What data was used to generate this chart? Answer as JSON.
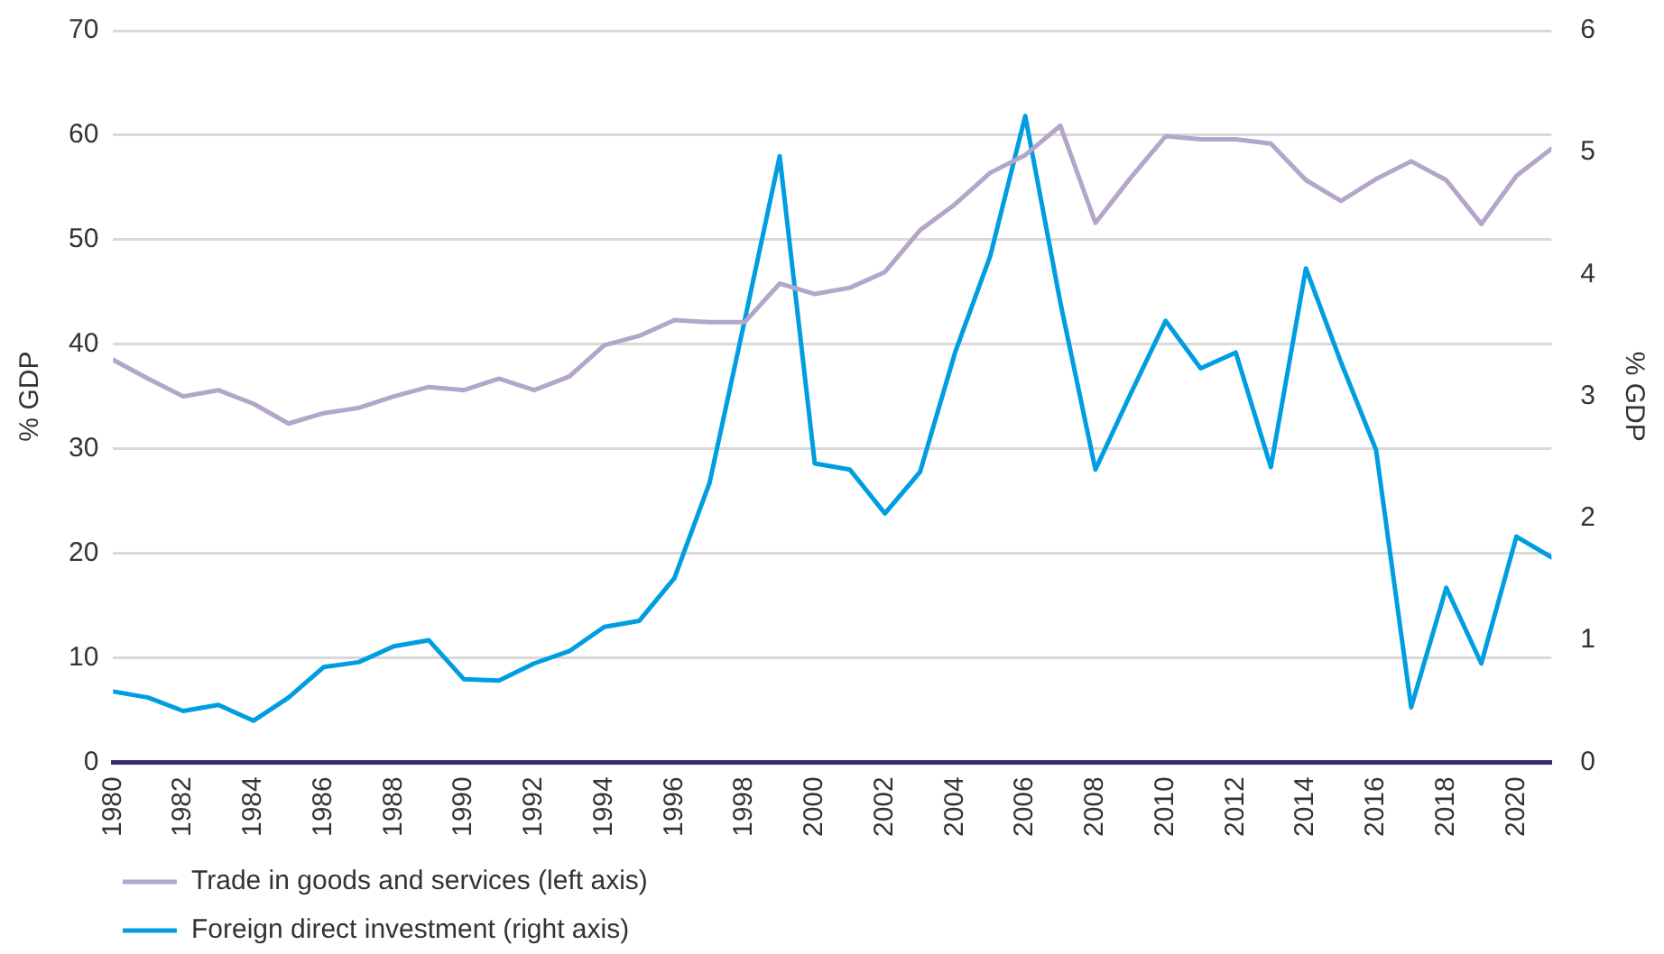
{
  "chart_data": {
    "type": "line",
    "x": [
      1980,
      1981,
      1982,
      1983,
      1984,
      1985,
      1986,
      1987,
      1988,
      1989,
      1990,
      1991,
      1992,
      1993,
      1994,
      1995,
      1996,
      1997,
      1998,
      1999,
      2000,
      2001,
      2002,
      2003,
      2004,
      2005,
      2006,
      2007,
      2008,
      2009,
      2010,
      2011,
      2012,
      2013,
      2014,
      2015,
      2016,
      2017,
      2018,
      2019,
      2020,
      2021
    ],
    "series": [
      {
        "name": "Trade in goods and services (left axis)",
        "color": "#b3a6c9",
        "values": [
          38.5,
          36.7,
          35.0,
          35.6,
          34.3,
          32.4,
          33.4,
          33.9,
          35.0,
          35.9,
          35.6,
          36.7,
          35.6,
          36.9,
          39.9,
          40.8,
          42.3,
          42.1,
          42.1,
          45.8,
          44.8,
          45.4,
          46.9,
          50.9,
          53.4,
          56.4,
          58.1,
          60.9,
          51.6,
          55.9,
          59.9,
          59.6,
          59.6,
          59.2,
          55.7,
          53.7,
          55.8,
          57.5,
          55.7,
          51.5,
          56.1,
          58.7
        ]
      },
      {
        "name": "Foreign direct investment (right axis)",
        "color": "#009ee0",
        "axis": "y2",
        "values": [
          0.58,
          0.53,
          0.42,
          0.47,
          0.34,
          0.53,
          0.78,
          0.82,
          0.95,
          1.0,
          0.68,
          0.67,
          0.81,
          0.91,
          1.11,
          1.16,
          1.51,
          2.29,
          3.62,
          4.97,
          2.45,
          2.4,
          2.04,
          2.38,
          3.36,
          4.15,
          5.3,
          3.77,
          2.4,
          3.02,
          3.62,
          3.23,
          3.36,
          2.42,
          4.05,
          3.28,
          2.56,
          0.45,
          1.43,
          0.81,
          1.85,
          1.68
        ]
      }
    ],
    "ylabel": "% GDP",
    "y2label": "% GDP",
    "xlim": [
      1980,
      2021
    ],
    "xticks": [
      1980,
      1982,
      1984,
      1986,
      1988,
      1990,
      1992,
      1994,
      1996,
      1998,
      2000,
      2002,
      2004,
      2006,
      2008,
      2010,
      2012,
      2014,
      2016,
      2018,
      2020
    ],
    "ylim": [
      0,
      70
    ],
    "yticks": [
      0,
      10,
      20,
      30,
      40,
      50,
      60,
      70
    ],
    "y2lim": [
      0,
      6
    ],
    "y2ticks": [
      0,
      1,
      2,
      3,
      4,
      5,
      6
    ],
    "grid": "y",
    "legend": "bottom left",
    "marker": "none",
    "line_style": "solid"
  }
}
